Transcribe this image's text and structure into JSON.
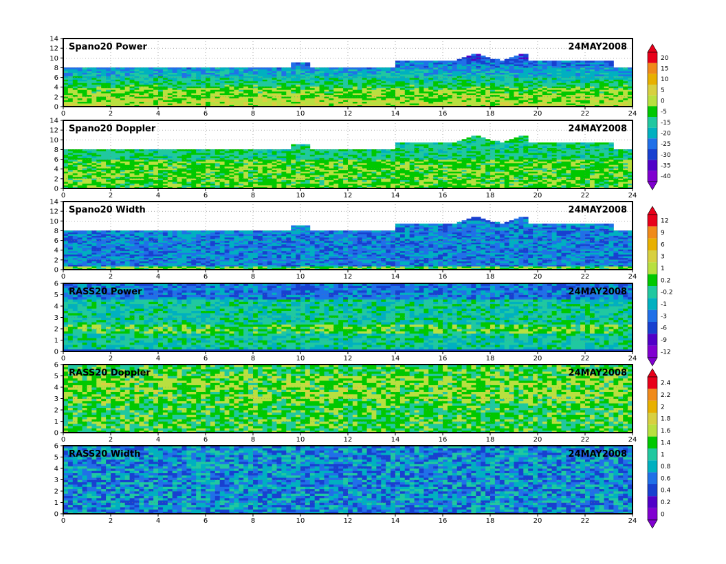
{
  "chart_data": {
    "type": "heatmap",
    "panels": [
      {
        "title": "Spano20  Power",
        "date": "24MAY2008",
        "x": {
          "min": 0,
          "max": 24,
          "ticks": [
            "0",
            "2",
            "4",
            "6",
            "8",
            "10",
            "12",
            "14",
            "16",
            "18",
            "20",
            "22",
            "24"
          ]
        },
        "y": {
          "min": 0,
          "max": 14,
          "ticks": [
            "0",
            "2",
            "4",
            "6",
            "8",
            "10",
            "12",
            "14"
          ]
        },
        "gridlines": "dotted"
      },
      {
        "title": "Spano20  Doppler",
        "date": "24MAY2008",
        "x": {
          "min": 0,
          "max": 24,
          "ticks": [
            "0",
            "2",
            "4",
            "6",
            "8",
            "10",
            "12",
            "14",
            "16",
            "18",
            "20",
            "22",
            "24"
          ]
        },
        "y": {
          "min": 0,
          "max": 14,
          "ticks": [
            "0",
            "2",
            "4",
            "6",
            "8",
            "10",
            "12",
            "14"
          ]
        },
        "gridlines": "dotted"
      },
      {
        "title": "Spano20  Width",
        "date": "24MAY2008",
        "x": {
          "min": 0,
          "max": 24,
          "ticks": [
            "0",
            "2",
            "4",
            "6",
            "8",
            "10",
            "12",
            "14",
            "16",
            "18",
            "20",
            "22",
            "24"
          ]
        },
        "y": {
          "min": 0,
          "max": 14,
          "ticks": [
            "0",
            "2",
            "4",
            "6",
            "8",
            "10",
            "12",
            "14"
          ]
        },
        "gridlines": "dotted"
      },
      {
        "title": "RASS20  Power",
        "date": "24MAY2008",
        "x": {
          "min": 0,
          "max": 24,
          "ticks": [
            "0",
            "2",
            "4",
            "6",
            "8",
            "10",
            "12",
            "14",
            "16",
            "18",
            "20",
            "22",
            "24"
          ]
        },
        "y": {
          "min": 0,
          "max": 6,
          "ticks": [
            "0",
            "1",
            "2",
            "3",
            "4",
            "5",
            "6"
          ]
        },
        "gridlines": "dotted"
      },
      {
        "title": "RASS20  Doppler",
        "date": "24MAY2008",
        "x": {
          "min": 0,
          "max": 24,
          "ticks": [
            "0",
            "2",
            "4",
            "6",
            "8",
            "10",
            "12",
            "14",
            "16",
            "18",
            "20",
            "22",
            "24"
          ]
        },
        "y": {
          "min": 0,
          "max": 6,
          "ticks": [
            "0",
            "1",
            "2",
            "3",
            "4",
            "5",
            "6"
          ]
        },
        "gridlines": "dotted"
      },
      {
        "title": "RASS20  Width",
        "date": "24MAY2008",
        "x": {
          "min": 0,
          "max": 24,
          "ticks": [
            "0",
            "2",
            "4",
            "6",
            "8",
            "10",
            "12",
            "14",
            "16",
            "18",
            "20",
            "22",
            "24"
          ]
        },
        "y": {
          "min": 0,
          "max": 6,
          "ticks": [
            "0",
            "1",
            "2",
            "3",
            "4",
            "5",
            "6"
          ]
        },
        "gridlines": "dotted"
      }
    ],
    "colorbars": [
      {
        "labels": [
          "20",
          "15",
          "10",
          "5",
          "0",
          "-5",
          "-15",
          "-20",
          "-25",
          "-30",
          "-35",
          "-40"
        ]
      },
      {
        "labels": [
          "12",
          "9",
          "6",
          "3",
          "1",
          "0.2",
          "-0.2",
          "-1",
          "-3",
          "-6",
          "-9",
          "-12"
        ]
      },
      {
        "labels": [
          "2.4",
          "2.2",
          "2",
          "1.8",
          "1.6",
          "1.4",
          "1",
          "0.8",
          "0.6",
          "0.4",
          "0.2",
          "0"
        ]
      }
    ],
    "palette": [
      "#e8001a",
      "#f08a1a",
      "#e8b000",
      "#d8d040",
      "#b8e040",
      "#00c800",
      "#20c8a0",
      "#00b0c0",
      "#2070e8",
      "#1840d0",
      "#5000c8",
      "#8000d0"
    ]
  }
}
